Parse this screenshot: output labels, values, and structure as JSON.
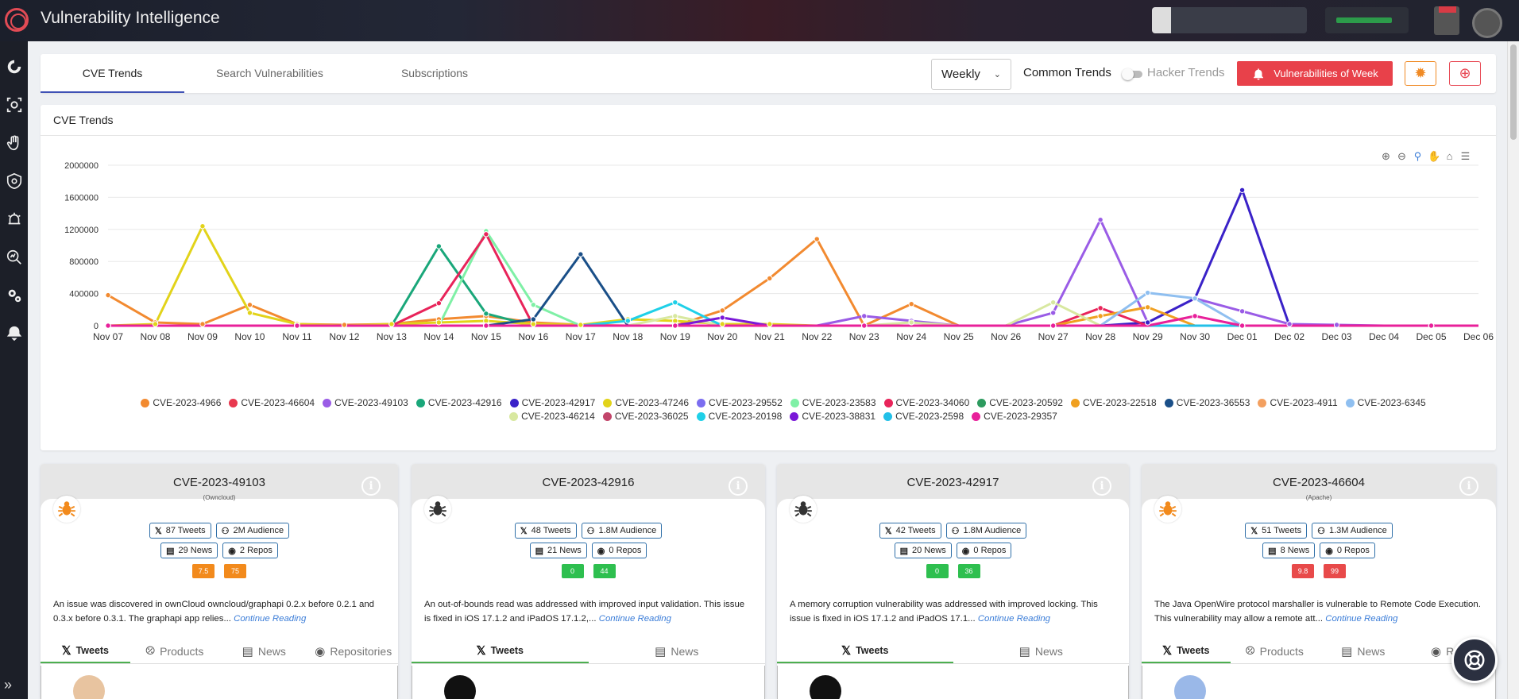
{
  "app": {
    "title": "Vulnerability Intelligence"
  },
  "tabs": [
    {
      "label": "CVE Trends",
      "active": true
    },
    {
      "label": "Search Vulnerabilities",
      "active": false
    },
    {
      "label": "Subscriptions",
      "active": false
    }
  ],
  "controls": {
    "period_select": "Weekly",
    "common_trends_label": "Common Trends",
    "hacker_trends_label": "Hacker Trends",
    "vulns_of_week_label": "Vulnerabilities of Week"
  },
  "chart_card": {
    "title": "CVE Trends"
  },
  "chart_data": {
    "type": "line",
    "title": "",
    "xlabel": "",
    "ylabel": "",
    "ylim": [
      0,
      2000000
    ],
    "yticks": [
      0,
      400000,
      800000,
      1200000,
      1600000,
      2000000
    ],
    "ytick_labels": [
      "0",
      "400000",
      "800000",
      "1200000",
      "1600000",
      "2000000"
    ],
    "grid": true,
    "legend_position": "bottom",
    "categories": [
      "Nov 07",
      "Nov 08",
      "Nov 09",
      "Nov 10",
      "Nov 11",
      "Nov 12",
      "Nov 13",
      "Nov 14",
      "Nov 15",
      "Nov 16",
      "Nov 17",
      "Nov 18",
      "Nov 19",
      "Nov 20",
      "Nov 21",
      "Nov 22",
      "Nov 23",
      "Nov 24",
      "Nov 25",
      "Nov 26",
      "Nov 27",
      "Nov 28",
      "Nov 29",
      "Nov 30",
      "Dec 01",
      "Dec 02",
      "Dec 03",
      "Dec 04",
      "Dec 05",
      "Dec 06"
    ],
    "series": [
      {
        "name": "CVE-2023-4966",
        "color": "#f28a30",
        "values": [
          380000,
          40000,
          20000,
          260000,
          20000,
          10000,
          20000,
          80000,
          120000,
          40000,
          10000,
          0,
          0,
          190000,
          590000,
          1080000,
          0,
          270000,
          0,
          0,
          0,
          0,
          0,
          0,
          0,
          0,
          0,
          0,
          0,
          0
        ]
      },
      {
        "name": "CVE-2023-46604",
        "color": "#e8384f",
        "values": [
          0,
          0,
          0,
          0,
          0,
          0,
          0,
          0,
          0,
          0,
          0,
          0,
          0,
          0,
          0,
          0,
          0,
          0,
          0,
          0,
          0,
          0,
          0,
          0,
          0,
          0,
          0,
          0,
          0,
          0
        ]
      },
      {
        "name": "CVE-2023-49103",
        "color": "#9a5ce6",
        "values": [
          0,
          0,
          0,
          0,
          0,
          0,
          0,
          0,
          0,
          0,
          0,
          0,
          0,
          0,
          0,
          0,
          120000,
          60000,
          0,
          0,
          160000,
          1320000,
          40000,
          340000,
          180000,
          20000,
          10000,
          0,
          0,
          0
        ]
      },
      {
        "name": "CVE-2023-42916",
        "color": "#1aa77a",
        "values": [
          0,
          0,
          0,
          0,
          0,
          0,
          0,
          990000,
          150000,
          0,
          0,
          0,
          0,
          0,
          0,
          0,
          0,
          0,
          0,
          0,
          0,
          0,
          0,
          0,
          0,
          0,
          0,
          0,
          0,
          0
        ]
      },
      {
        "name": "CVE-2023-42917",
        "color": "#3a22c8",
        "values": [
          0,
          0,
          0,
          0,
          0,
          0,
          0,
          0,
          0,
          0,
          0,
          0,
          0,
          0,
          0,
          0,
          0,
          0,
          0,
          0,
          0,
          0,
          40000,
          340000,
          1690000,
          0,
          0,
          0,
          0,
          0
        ]
      },
      {
        "name": "CVE-2023-47246",
        "color": "#e2d31a",
        "values": [
          0,
          20000,
          1240000,
          160000,
          20000,
          0,
          20000,
          40000,
          60000,
          20000,
          10000,
          80000,
          60000,
          20000,
          20000,
          0,
          0,
          0,
          0,
          0,
          0,
          0,
          0,
          0,
          0,
          0,
          0,
          0,
          0,
          0
        ]
      },
      {
        "name": "CVE-2023-29552",
        "color": "#7b6df0",
        "values": [
          0,
          0,
          0,
          0,
          0,
          0,
          0,
          0,
          0,
          0,
          0,
          0,
          0,
          0,
          0,
          0,
          0,
          0,
          0,
          0,
          0,
          0,
          0,
          0,
          0,
          0,
          0,
          0,
          0,
          0
        ]
      },
      {
        "name": "CVE-2023-23583",
        "color": "#7ff0a6",
        "values": [
          0,
          0,
          0,
          0,
          0,
          0,
          0,
          0,
          1180000,
          260000,
          0,
          0,
          0,
          0,
          0,
          0,
          0,
          0,
          0,
          0,
          0,
          0,
          0,
          0,
          0,
          0,
          0,
          0,
          0,
          0
        ]
      },
      {
        "name": "CVE-2023-34060",
        "color": "#e8245a",
        "values": [
          0,
          0,
          0,
          0,
          0,
          0,
          0,
          280000,
          1140000,
          0,
          0,
          0,
          0,
          0,
          0,
          0,
          0,
          0,
          0,
          0,
          0,
          220000,
          0,
          0,
          0,
          0,
          0,
          0,
          0,
          0
        ]
      },
      {
        "name": "CVE-2023-20592",
        "color": "#2d9b5f",
        "values": [
          0,
          0,
          0,
          0,
          0,
          0,
          0,
          0,
          0,
          0,
          0,
          0,
          0,
          0,
          0,
          0,
          0,
          0,
          0,
          0,
          0,
          0,
          0,
          0,
          0,
          0,
          0,
          0,
          0,
          0
        ]
      },
      {
        "name": "CVE-2023-22518",
        "color": "#f0a020",
        "values": [
          0,
          0,
          0,
          0,
          0,
          0,
          0,
          0,
          0,
          0,
          0,
          0,
          0,
          0,
          0,
          0,
          0,
          0,
          0,
          0,
          0,
          120000,
          230000,
          0,
          0,
          0,
          0,
          0,
          0,
          0
        ]
      },
      {
        "name": "CVE-2023-36553",
        "color": "#1a4f88",
        "values": [
          0,
          0,
          0,
          0,
          0,
          0,
          0,
          0,
          0,
          80000,
          890000,
          0,
          0,
          0,
          0,
          0,
          0,
          0,
          0,
          0,
          0,
          0,
          0,
          0,
          0,
          0,
          0,
          0,
          0,
          0
        ]
      },
      {
        "name": "CVE-2023-4911",
        "color": "#f3a060",
        "values": [
          0,
          0,
          0,
          0,
          0,
          0,
          0,
          0,
          0,
          0,
          0,
          0,
          0,
          0,
          0,
          0,
          0,
          0,
          0,
          0,
          0,
          0,
          0,
          0,
          0,
          0,
          0,
          0,
          0,
          0
        ]
      },
      {
        "name": "CVE-2023-6345",
        "color": "#8fbff0",
        "values": [
          0,
          0,
          0,
          0,
          0,
          0,
          0,
          0,
          0,
          0,
          0,
          0,
          0,
          0,
          0,
          0,
          0,
          0,
          0,
          0,
          0,
          0,
          410000,
          340000,
          0,
          0,
          0,
          0,
          0,
          0
        ]
      },
      {
        "name": "CVE-2023-46214",
        "color": "#d8e8a0",
        "values": [
          0,
          0,
          0,
          0,
          0,
          0,
          0,
          0,
          0,
          0,
          0,
          0,
          120000,
          0,
          0,
          0,
          0,
          40000,
          0,
          0,
          290000,
          0,
          0,
          0,
          0,
          0,
          0,
          0,
          0,
          0
        ]
      },
      {
        "name": "CVE-2023-36025",
        "color": "#c2456a",
        "values": [
          0,
          0,
          0,
          0,
          0,
          0,
          0,
          0,
          0,
          0,
          0,
          0,
          0,
          0,
          0,
          0,
          0,
          0,
          0,
          0,
          0,
          0,
          0,
          0,
          0,
          0,
          0,
          0,
          0,
          0
        ]
      },
      {
        "name": "CVE-2023-20198",
        "color": "#1fd0e8",
        "values": [
          0,
          0,
          0,
          0,
          0,
          0,
          0,
          0,
          0,
          0,
          0,
          60000,
          290000,
          0,
          0,
          0,
          0,
          0,
          0,
          0,
          0,
          0,
          0,
          0,
          0,
          0,
          0,
          0,
          0,
          0
        ]
      },
      {
        "name": "CVE-2023-38831",
        "color": "#7a18d8",
        "values": [
          0,
          0,
          0,
          0,
          0,
          0,
          0,
          0,
          0,
          0,
          0,
          0,
          0,
          100000,
          0,
          0,
          0,
          0,
          0,
          0,
          0,
          0,
          0,
          0,
          0,
          0,
          0,
          0,
          0,
          0
        ]
      },
      {
        "name": "CVE-2023-2598",
        "color": "#22c0e8",
        "values": [
          0,
          0,
          0,
          0,
          0,
          0,
          0,
          0,
          0,
          0,
          0,
          0,
          0,
          0,
          0,
          0,
          0,
          0,
          0,
          0,
          0,
          0,
          0,
          0,
          0,
          0,
          0,
          0,
          0,
          0
        ]
      },
      {
        "name": "CVE-2023-29357",
        "color": "#e8209a",
        "values": [
          0,
          0,
          0,
          0,
          0,
          0,
          0,
          0,
          0,
          0,
          0,
          0,
          0,
          0,
          0,
          0,
          0,
          0,
          0,
          0,
          0,
          0,
          0,
          120000,
          0,
          0,
          0,
          0,
          0,
          0
        ]
      }
    ]
  },
  "cve_cards": [
    {
      "cve_id": "CVE-2023-49103",
      "vendor": "(Owncloud)",
      "bug_color": "#f28a1c",
      "tweets": "87 Tweets",
      "audience": "2M Audience",
      "news": "29 News",
      "repos": "2 Repos",
      "score1": "7.5",
      "score2": "75",
      "score_color": "#f28a1c",
      "description": "An issue was discovered in ownCloud owncloud/graphapi 0.2.x before 0.2.1 and 0.3.x before 0.3.1. The graphapi app relies...",
      "more": "Continue Reading",
      "tabs": [
        "Tweets",
        "Products",
        "News",
        "Repositories"
      ]
    },
    {
      "cve_id": "CVE-2023-42916",
      "vendor": "",
      "bug_color": "#333333",
      "tweets": "48 Tweets",
      "audience": "1.8M Audience",
      "news": "21 News",
      "repos": "0 Repos",
      "score1": "0",
      "score2": "44",
      "score_color": "#2ebf4f",
      "description": "An out-of-bounds read was addressed with improved input validation. This issue is fixed in iOS 17.1.2 and iPadOS 17.1.2,...",
      "more": "Continue Reading",
      "tabs": [
        "Tweets",
        "News"
      ]
    },
    {
      "cve_id": "CVE-2023-42917",
      "vendor": "",
      "bug_color": "#333333",
      "tweets": "42 Tweets",
      "audience": "1.8M Audience",
      "news": "20 News",
      "repos": "0 Repos",
      "score1": "0",
      "score2": "36",
      "score_color": "#2ebf4f",
      "description": "A memory corruption vulnerability was addressed with improved locking. This issue is fixed in iOS 17.1.2 and iPadOS 17.1...",
      "more": "Continue Reading",
      "tabs": [
        "Tweets",
        "News"
      ]
    },
    {
      "cve_id": "CVE-2023-46604",
      "vendor": "(Apache)",
      "bug_color": "#f28a1c",
      "tweets": "51 Tweets",
      "audience": "1.3M Audience",
      "news": "8 News",
      "repos": "0 Repos",
      "score1": "9.8",
      "score2": "99",
      "score_color": "#e84a4a",
      "description": "The Java OpenWire protocol marshaller is vulnerable to Remote Code Execution. This vulnerability may allow a remote att...",
      "more": "Continue Reading",
      "tabs": [
        "Tweets",
        "Products",
        "News",
        "Repo"
      ]
    }
  ],
  "icons": {
    "sidebar": [
      "dashboard-icon",
      "scan-icon",
      "hand-icon",
      "eye-shield-icon",
      "alert-icon",
      "analytics-icon",
      "gears-icon",
      "hacker-icon"
    ],
    "chart_toolbar": [
      "zoom-in-icon",
      "zoom-out-icon",
      "zoom-select-icon",
      "pan-icon",
      "reset-home-icon",
      "menu-icon"
    ]
  }
}
